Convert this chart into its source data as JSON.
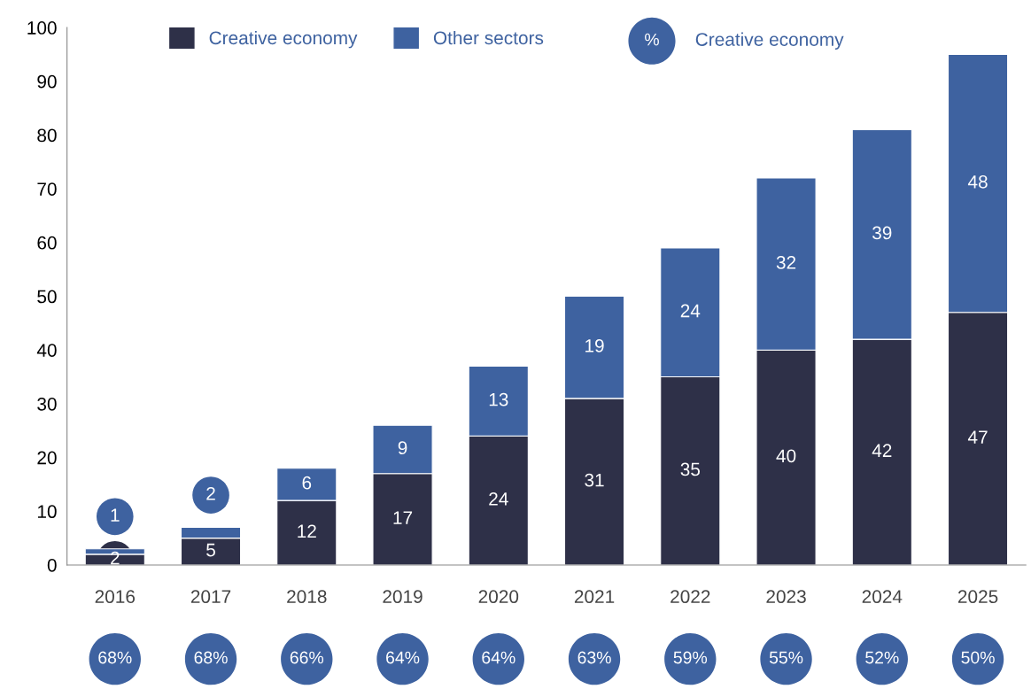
{
  "chart_data": {
    "type": "bar",
    "stacked": true,
    "categories": [
      "2016",
      "2017",
      "2018",
      "2019",
      "2020",
      "2021",
      "2022",
      "2023",
      "2024",
      "2025"
    ],
    "series": [
      {
        "name": "Creative economy",
        "color": "#2e3048",
        "values": [
          2,
          5,
          12,
          17,
          24,
          31,
          35,
          40,
          42,
          47
        ]
      },
      {
        "name": "Other sectors",
        "color": "#3e62a0",
        "values": [
          1,
          2,
          6,
          9,
          13,
          19,
          24,
          32,
          39,
          48
        ]
      }
    ],
    "ylim": [
      0,
      100
    ],
    "yticks": [
      0,
      10,
      20,
      30,
      40,
      50,
      60,
      70,
      80,
      90,
      100
    ],
    "data_labels": true,
    "legend": "top left",
    "grid": false,
    "annotations": [
      "%",
      "Creative economy",
      "68%",
      "68%",
      "66%",
      "64%",
      "64%",
      "63%",
      "59%",
      "55%",
      "52%",
      "50%"
    ]
  }
}
